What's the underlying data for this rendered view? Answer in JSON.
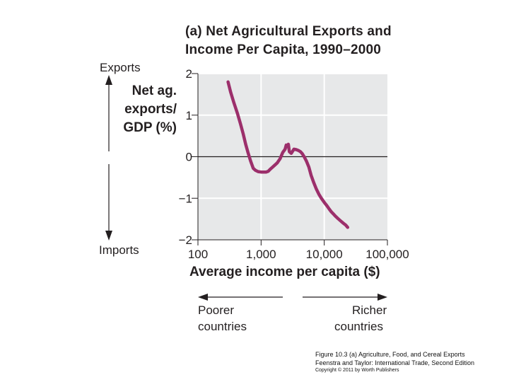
{
  "chart_data": {
    "type": "line",
    "title_lines": [
      "(a) Net Agricultural Exports and",
      "Income Per Capita, 1990–2000"
    ],
    "ylabel_lines": [
      "Net ag.",
      "exports/",
      "GDP (%)"
    ],
    "xlabel": "Average income per capita ($)",
    "x_scale": "log",
    "xlim": [
      100,
      100000
    ],
    "ylim": [
      -2,
      2
    ],
    "x_ticks": [
      100,
      1000,
      10000,
      100000
    ],
    "x_tick_labels": [
      "100",
      "1,000",
      "10,000",
      "100,000"
    ],
    "y_ticks": [
      2,
      1,
      0,
      -1,
      -2
    ],
    "y_tick_labels": [
      "2",
      "1",
      "0",
      "−1",
      "−2"
    ],
    "zero_line": true,
    "grid": "y",
    "line_color": "#9c2f6b",
    "series": [
      {
        "x": [
          300,
          330,
          370,
          420,
          470,
          520,
          570,
          620,
          680,
          750,
          820,
          900,
          1000,
          1100,
          1200,
          1300,
          1400,
          1600,
          1800,
          2000,
          2200,
          2400,
          2500,
          2600,
          2700,
          2800,
          3000,
          3300,
          3600,
          3900,
          4200,
          4500,
          4800,
          5200,
          5700,
          6200,
          6800,
          7500,
          8200,
          9000,
          10000,
          11000,
          12000,
          13000,
          14000,
          15000,
          16500,
          18000,
          20000,
          22000,
          23500
        ],
        "y": [
          1.8,
          1.55,
          1.3,
          1.05,
          0.8,
          0.55,
          0.3,
          0.1,
          -0.1,
          -0.28,
          -0.33,
          -0.36,
          -0.37,
          -0.37,
          -0.37,
          -0.35,
          -0.3,
          -0.22,
          -0.15,
          -0.05,
          0.1,
          0.18,
          0.28,
          0.24,
          0.3,
          0.12,
          0.08,
          0.18,
          0.17,
          0.15,
          0.12,
          0.07,
          0.0,
          -0.1,
          -0.25,
          -0.45,
          -0.62,
          -0.78,
          -0.9,
          -1.0,
          -1.1,
          -1.18,
          -1.26,
          -1.33,
          -1.38,
          -1.43,
          -1.49,
          -1.54,
          -1.6,
          -1.65,
          -1.7
        ]
      }
    ]
  },
  "annotations": {
    "exports": "Exports",
    "imports": "Imports",
    "poorer": [
      "Poorer",
      "countries"
    ],
    "richer": [
      "Richer",
      "countries"
    ]
  },
  "caption": {
    "line1": "Figure 10.3 (a) Agriculture, Food, and Cereal Exports",
    "line2": "Feenstra and Taylor: International Trade, Second Edition",
    "line3": "Copyright © 2011 by Worth Publishers"
  }
}
